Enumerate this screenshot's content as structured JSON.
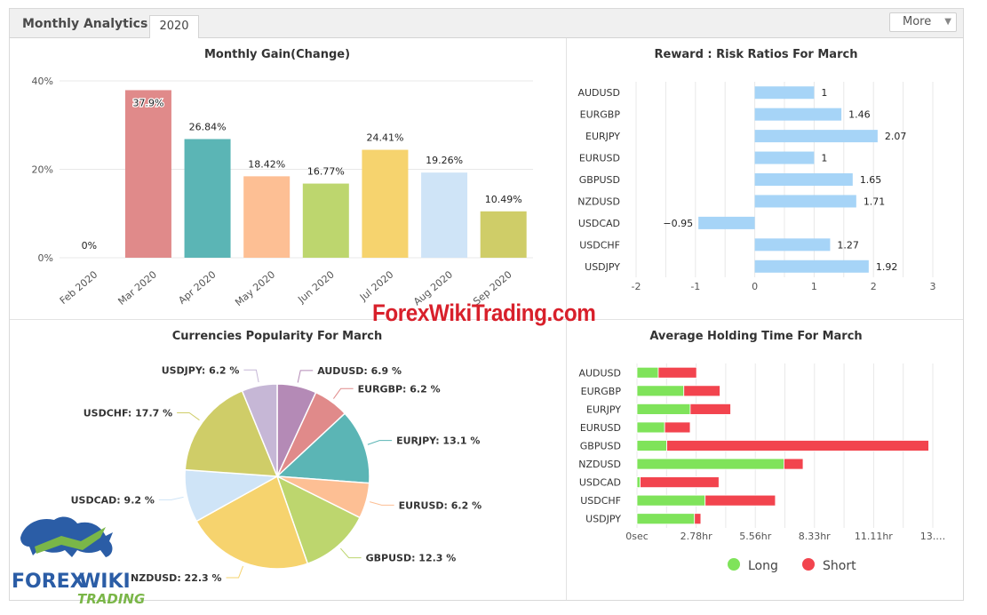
{
  "header": {
    "title": "Monthly Analytics",
    "tab": "2020",
    "more": "More"
  },
  "watermark": "ForexWikiTrading.com",
  "logo": {
    "line1": "FOREX WIKI",
    "line2": "TRADING"
  },
  "chart_data": [
    {
      "type": "bar",
      "title": "Monthly Gain(Change)",
      "categories": [
        "Feb 2020",
        "Mar 2020",
        "Apr 2020",
        "May 2020",
        "Jun 2020",
        "Jul 2020",
        "Aug 2020",
        "Sep 2020"
      ],
      "values": [
        0,
        37.9,
        26.84,
        18.42,
        16.77,
        24.41,
        19.26,
        10.49
      ],
      "labels": [
        "0%",
        "37.9%",
        "26.84%",
        "18.42%",
        "16.77%",
        "24.41%",
        "19.26%",
        "10.49%"
      ],
      "colors": [
        "#e08a8a",
        "#e08a8a",
        "#5bb5b5",
        "#fdbf94",
        "#bdd66e",
        "#f6d36e",
        "#cfe4f7",
        "#cfcd68"
      ],
      "yticks": [
        "0%",
        "20%",
        "40%"
      ],
      "ylim": [
        0,
        40
      ],
      "grid": true
    },
    {
      "type": "bar",
      "orientation": "horizontal",
      "title": "Reward : Risk Ratios For March",
      "categories": [
        "AUDUSD",
        "EURGBP",
        "EURJPY",
        "EURUSD",
        "GBPUSD",
        "NZDUSD",
        "USDCAD",
        "USDCHF",
        "USDJPY"
      ],
      "values": [
        1,
        1.46,
        2.07,
        1,
        1.65,
        1.71,
        -0.95,
        1.27,
        1.92
      ],
      "labels": [
        "1",
        "1.46",
        "2.07",
        "1",
        "1.65",
        "1.71",
        "−0.95",
        "1.27",
        "1.92"
      ],
      "xticks": [
        "-2",
        "-1",
        "0",
        "1",
        "2",
        "3"
      ],
      "xlim": [
        -2,
        3
      ],
      "color": "#a6d4f7",
      "grid": true
    },
    {
      "type": "pie",
      "title": "Currencies Popularity For March",
      "slices": [
        {
          "label": "AUDUSD: 6.9 %",
          "name": "AUDUSD",
          "value": 6.9,
          "color": "#b48ab6"
        },
        {
          "label": "EURGBP: 6.2 %",
          "name": "EURGBP",
          "value": 6.2,
          "color": "#e08a8a"
        },
        {
          "label": "EURJPY: 13.1 %",
          "name": "EURJPY",
          "value": 13.1,
          "color": "#5bb5b5"
        },
        {
          "label": "EURUSD: 6.2 %",
          "name": "EURUSD",
          "value": 6.2,
          "color": "#fdbf94"
        },
        {
          "label": "GBPUSD: 12.3 %",
          "name": "GBPUSD",
          "value": 12.3,
          "color": "#bdd66e"
        },
        {
          "label": "NZDUSD: 22.3 %",
          "name": "NZDUSD",
          "value": 22.3,
          "color": "#f6d36e"
        },
        {
          "label": "USDCAD: 9.2 %",
          "name": "USDCAD",
          "value": 9.2,
          "color": "#cfe4f7"
        },
        {
          "label": "USDCHF: 17.7 %",
          "name": "USDCHF",
          "value": 17.7,
          "color": "#cfcd68"
        },
        {
          "label": "USDJPY: 6.2 %",
          "name": "USDJPY",
          "value": 6.2,
          "color": "#c6b7d6"
        }
      ]
    },
    {
      "type": "bar",
      "orientation": "horizontal",
      "stacked": true,
      "title": "Average Holding Time For March",
      "categories": [
        "AUDUSD",
        "EURGBP",
        "EURJPY",
        "EURUSD",
        "GBPUSD",
        "NZDUSD",
        "USDCAD",
        "USDCHF",
        "USDJPY"
      ],
      "xticks": [
        "0sec",
        "2.78hr",
        "5.56hr",
        "8.33hr",
        "11.11hr",
        "13.…"
      ],
      "xtick_values": [
        0,
        2.78,
        5.56,
        8.33,
        11.11,
        13.89
      ],
      "series": [
        {
          "name": "Long",
          "color": "#7fe35a",
          "values": [
            1.0,
            2.2,
            2.5,
            1.3,
            1.4,
            6.9,
            0.15,
            3.2,
            2.7
          ]
        },
        {
          "name": "Short",
          "color": "#f2444e",
          "values": [
            1.8,
            1.7,
            1.9,
            1.2,
            12.3,
            0.9,
            3.7,
            3.3,
            0.3
          ]
        }
      ],
      "xlim": [
        0,
        13.89
      ],
      "legend": "bottom",
      "grid": true
    }
  ]
}
